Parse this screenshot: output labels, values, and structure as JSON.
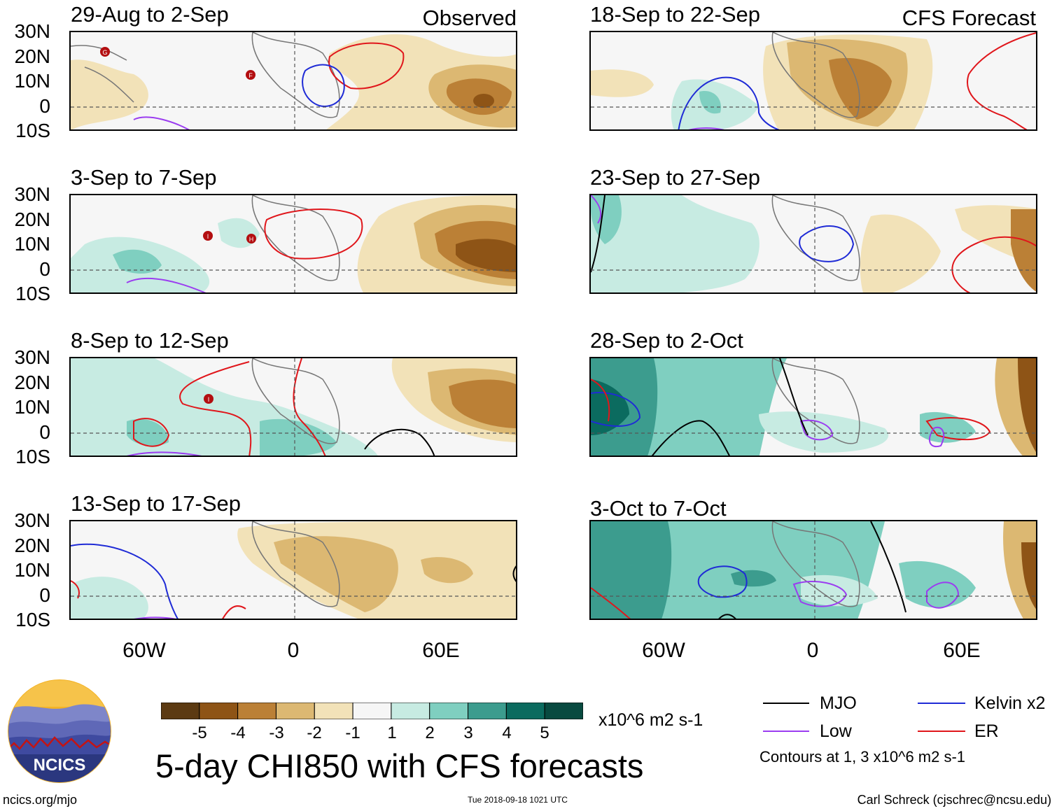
{
  "panels": [
    {
      "id": "p1",
      "title": "29-Aug to 2-Sep",
      "tag": "Observed",
      "markers": [
        "G",
        "F"
      ]
    },
    {
      "id": "p2",
      "title": "3-Sep to 7-Sep",
      "tag": "",
      "markers": [
        "I",
        "H"
      ]
    },
    {
      "id": "p3",
      "title": "8-Sep to 12-Sep",
      "tag": "",
      "markers": [
        "I"
      ]
    },
    {
      "id": "p4",
      "title": "13-Sep to 17-Sep",
      "tag": "",
      "markers": []
    },
    {
      "id": "p5",
      "title": "18-Sep to 22-Sep",
      "tag": "CFS Forecast",
      "markers": []
    },
    {
      "id": "p6",
      "title": "23-Sep to 27-Sep",
      "tag": "",
      "markers": []
    },
    {
      "id": "p7",
      "title": "28-Sep to 2-Oct",
      "tag": "",
      "markers": []
    },
    {
      "id": "p8",
      "title": "3-Oct to 7-Oct",
      "tag": "",
      "markers": []
    }
  ],
  "axes": {
    "lat_labels": [
      "30N",
      "20N",
      "10N",
      "0",
      "10S"
    ],
    "lon_labels": [
      "60W",
      "0",
      "60E"
    ]
  },
  "colorbar": {
    "labels": [
      "-5",
      "-4",
      "-3",
      "-2",
      "-1",
      "1",
      "2",
      "3",
      "4",
      "5"
    ],
    "colors": [
      "#5c3a12",
      "#8e5416",
      "#bb8036",
      "#dcb872",
      "#f2e2b8",
      "#f6f6f6",
      "#c7ebe2",
      "#7fcfc0",
      "#3c9c8e",
      "#0b6b5f",
      "#084a40"
    ],
    "units": "x10^6 m2 s-1"
  },
  "legend": {
    "items": [
      {
        "label": "MJO",
        "color": "#000000"
      },
      {
        "label": "Kelvin x2",
        "color": "#1f2bd6"
      },
      {
        "label": "Low",
        "color": "#9b3df0"
      },
      {
        "label": "ER",
        "color": "#e0161b"
      }
    ],
    "note": "Contours at 1, 3 x10^6 m2 s-1"
  },
  "main_title": "5-day CHI850 with CFS forecasts",
  "logo_text": "NCICS",
  "footer": {
    "url": "ncics.org/mjo",
    "timestamp": "Tue 2018-09-18 1021 UTC",
    "author": "Carl Schreck (cjschrec@ncsu.edu)"
  }
}
